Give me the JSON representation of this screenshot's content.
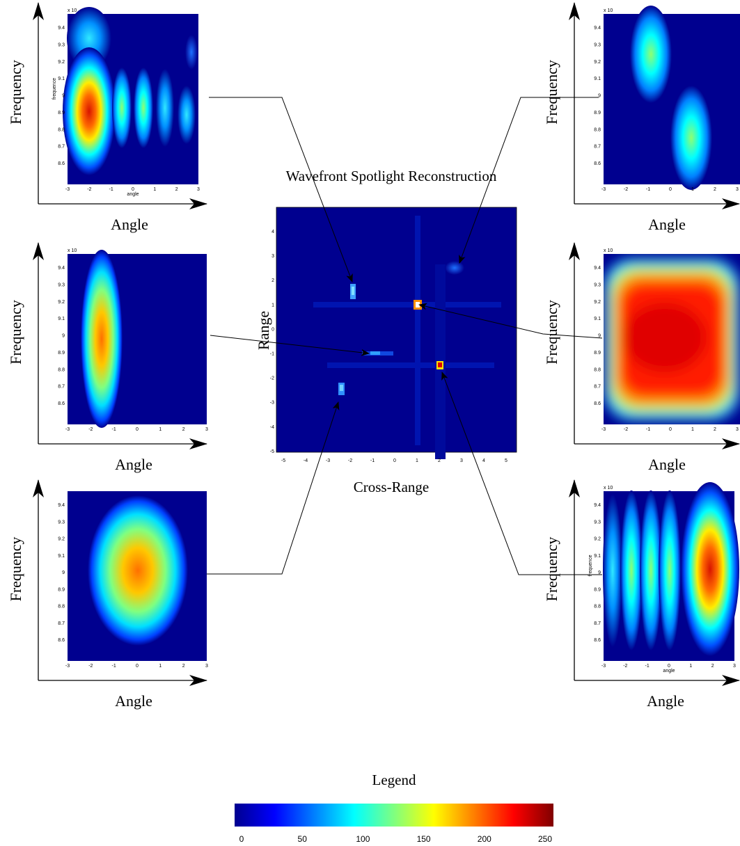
{
  "panels": [
    {
      "y_axis_label": "Frequency",
      "x_axis_label": "Angle",
      "exponent": "x 10",
      "inner_y_label": "frequence",
      "inner_x_label": "angle",
      "yticks": [
        9.4,
        9.3,
        9.2,
        9.1,
        9,
        8.9,
        8.8,
        8.7,
        8.6
      ],
      "xticks": [
        -3,
        -2,
        -1,
        0,
        1,
        2,
        3
      ]
    },
    {
      "y_axis_label": "Frequency",
      "x_axis_label": "Angle",
      "exponent": "x 10",
      "yticks": [
        9.4,
        9.3,
        9.2,
        9.1,
        9,
        8.9,
        8.8,
        8.7,
        8.6
      ],
      "xticks": [
        -3,
        -2,
        -1,
        0,
        1,
        2,
        3
      ]
    },
    {
      "y_axis_label": "Frequency",
      "x_axis_label": "Angle",
      "yticks": [
        9.4,
        9.3,
        9.2,
        9.1,
        9,
        8.9,
        8.8,
        8.7,
        8.6
      ],
      "xticks": [
        -3,
        -2,
        -1,
        0,
        1,
        2,
        3
      ]
    },
    {
      "y_axis_label": "Frequency",
      "x_axis_label": "Angle",
      "exponent": "x 10",
      "yticks": [
        9.4,
        9.3,
        9.2,
        9.1,
        9,
        8.9,
        8.8,
        8.7,
        8.6
      ],
      "xticks": [
        -3,
        -2,
        -1,
        0,
        1,
        2,
        3
      ]
    },
    {
      "y_axis_label": "Frequency",
      "x_axis_label": "Angle",
      "exponent": "x 10",
      "yticks": [
        9.4,
        9.3,
        9.2,
        9.1,
        9,
        8.9,
        8.8,
        8.7,
        8.6
      ],
      "xticks": [
        -3,
        -2,
        -1,
        0,
        1,
        2,
        3
      ]
    },
    {
      "y_axis_label": "Frequency",
      "x_axis_label": "Angle",
      "exponent": "x 10",
      "inner_y_label": "frequence",
      "inner_x_label": "angle",
      "yticks": [
        9.4,
        9.3,
        9.2,
        9.1,
        9,
        8.9,
        8.8,
        8.7,
        8.6
      ],
      "xticks": [
        -3,
        -2,
        -1,
        0,
        1,
        2,
        3
      ]
    }
  ],
  "reconstruction": {
    "title": "Wavefront Spotlight Reconstruction",
    "y_label": "Range",
    "x_label": "Cross-Range",
    "xticks": [
      -5,
      -4,
      -3,
      -2,
      -1,
      0,
      1,
      2,
      3,
      4,
      5
    ],
    "yticks": [
      4,
      3,
      2,
      1,
      0,
      -1,
      -2,
      -3,
      -4,
      -5
    ]
  },
  "legend": {
    "title": "Legend",
    "ticks": [
      0,
      50,
      100,
      150,
      200,
      250
    ]
  }
}
